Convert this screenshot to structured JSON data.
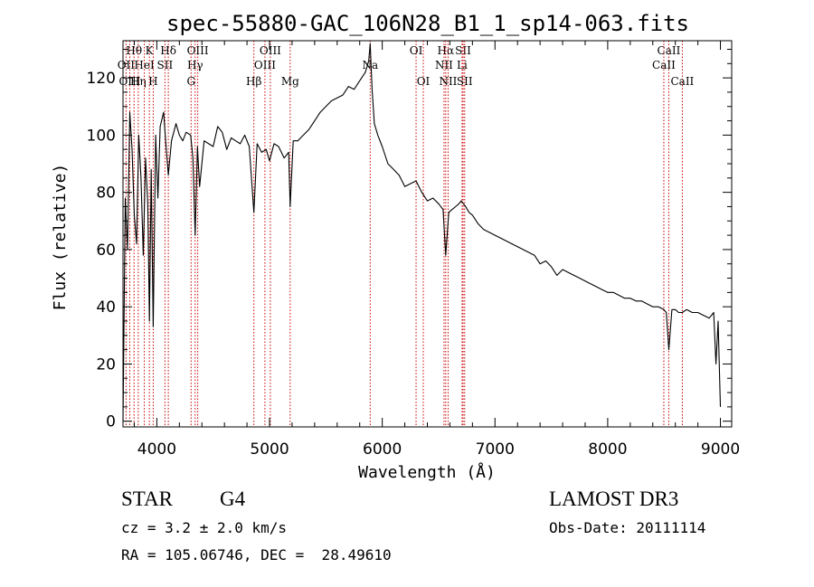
{
  "chart_data": {
    "type": "line",
    "title": "spec-55880-GAC_106N28_B1_1_sp14-063.fits",
    "xlabel": "Wavelength (Å)",
    "ylabel": "Flux (relative)",
    "xlim": [
      3700,
      9100
    ],
    "ylim": [
      -2,
      133
    ],
    "xticks": [
      4000,
      5000,
      6000,
      7000,
      8000,
      9000
    ],
    "yticks": [
      0,
      20,
      40,
      60,
      80,
      100,
      120
    ],
    "grid": false,
    "line_color": "#000000",
    "marker_color": "#cc0000",
    "series": [
      {
        "x": [
          3700,
          3720,
          3740,
          3760,
          3780,
          3800,
          3820,
          3840,
          3860,
          3880,
          3900,
          3920,
          3934,
          3950,
          3968,
          3990,
          4010,
          4030,
          4060,
          4080,
          4102,
          4130,
          4170,
          4200,
          4230,
          4260,
          4300,
          4320,
          4340,
          4360,
          4380,
          4420,
          4460,
          4500,
          4540,
          4580,
          4620,
          4660,
          4700,
          4740,
          4780,
          4820,
          4861,
          4890,
          4930,
          4970,
          5000,
          5040,
          5080,
          5130,
          5170,
          5183,
          5210,
          5250,
          5300,
          5350,
          5400,
          5450,
          5500,
          5550,
          5600,
          5650,
          5700,
          5750,
          5800,
          5850,
          5880,
          5893,
          5910,
          5930,
          5960,
          6000,
          6050,
          6100,
          6150,
          6200,
          6250,
          6300,
          6350,
          6400,
          6450,
          6500,
          6540,
          6563,
          6590,
          6620,
          6650,
          6680,
          6700,
          6720,
          6740,
          6770,
          6800,
          6850,
          6900,
          6950,
          7000,
          7050,
          7100,
          7150,
          7200,
          7250,
          7300,
          7350,
          7400,
          7450,
          7500,
          7550,
          7600,
          7650,
          7700,
          7750,
          7800,
          7850,
          7900,
          7950,
          8000,
          8050,
          8100,
          8150,
          8200,
          8250,
          8300,
          8350,
          8400,
          8450,
          8498,
          8520,
          8542,
          8570,
          8600,
          8630,
          8662,
          8700,
          8750,
          8800,
          8850,
          8900,
          8940,
          8960,
          8980,
          9000
        ],
        "y": [
          0,
          78,
          60,
          108,
          95,
          72,
          62,
          100,
          85,
          58,
          92,
          76,
          35,
          88,
          33,
          100,
          78,
          103,
          108,
          97,
          86,
          98,
          104,
          100,
          98,
          101,
          100,
          92,
          65,
          96,
          82,
          98,
          97,
          96,
          103,
          101,
          95,
          99,
          98,
          97,
          100,
          96,
          73,
          97,
          94,
          95,
          91,
          97,
          96,
          92,
          94,
          75,
          98,
          98,
          100,
          102,
          105,
          108,
          110,
          112,
          113,
          114,
          117,
          116,
          119,
          122,
          126,
          132,
          116,
          104,
          100,
          96,
          90,
          88,
          86,
          82,
          83,
          84,
          80,
          77,
          78,
          76,
          74,
          58,
          73,
          74,
          75,
          76,
          77,
          76,
          75,
          73,
          72,
          69,
          67,
          66,
          65,
          64,
          63,
          62,
          61,
          60,
          59,
          58,
          55,
          56,
          54,
          51,
          53,
          52,
          51,
          50,
          49,
          48,
          47,
          46,
          45,
          45,
          44,
          43,
          43,
          42,
          42,
          41,
          40,
          40,
          39,
          38,
          25,
          39,
          39,
          38,
          38,
          39,
          38,
          38,
          37,
          36,
          38,
          20,
          35,
          5
        ]
      }
    ],
    "lines": [
      {
        "label": "Hθ",
        "wave": 3798,
        "row": 0
      },
      {
        "label": "OII",
        "wave": 3727,
        "row": 1
      },
      {
        "label": "OIII",
        "wave": 3760,
        "row": 2
      },
      {
        "label": "Hη",
        "wave": 3835,
        "row": 2
      },
      {
        "label": "HeI",
        "wave": 3889,
        "row": 1
      },
      {
        "label": "K",
        "wave": 3934,
        "row": 0
      },
      {
        "label": "H",
        "wave": 3968,
        "row": 2
      },
      {
        "label": "Hδ",
        "wave": 4102,
        "row": 0
      },
      {
        "label": "SII",
        "wave": 4072,
        "row": 1
      },
      {
        "label": "OIII",
        "wave": 4363,
        "row": 0
      },
      {
        "label": "Hγ",
        "wave": 4340,
        "row": 1
      },
      {
        "label": "G",
        "wave": 4304,
        "row": 2
      },
      {
        "label": "Hβ",
        "wave": 4861,
        "row": 2
      },
      {
        "label": "OIII",
        "wave": 5007,
        "row": 0
      },
      {
        "label": "OIII",
        "wave": 4959,
        "row": 1
      },
      {
        "label": "Mg",
        "wave": 5183,
        "row": 2
      },
      {
        "label": "Na",
        "wave": 5893,
        "row": 1
      },
      {
        "label": "OI",
        "wave": 6300,
        "row": 0
      },
      {
        "label": "OI",
        "wave": 6364,
        "row": 2
      },
      {
        "label": "Hα",
        "wave": 6563,
        "row": 0
      },
      {
        "label": "NII",
        "wave": 6548,
        "row": 1
      },
      {
        "label": "NII",
        "wave": 6584,
        "row": 2
      },
      {
        "label": "SII",
        "wave": 6717,
        "row": 0
      },
      {
        "label": "Li",
        "wave": 6708,
        "row": 1
      },
      {
        "label": "SII",
        "wave": 6731,
        "row": 2
      },
      {
        "label": "CaII",
        "wave": 8542,
        "row": 0
      },
      {
        "label": "CaII",
        "wave": 8498,
        "row": 1
      },
      {
        "label": "CaII",
        "wave": 8662,
        "row": 2
      }
    ]
  },
  "info": {
    "object_class": "STAR",
    "subclass": "G4",
    "survey": "LAMOST DR3",
    "redshift": "cz = 3.2 ± 2.0 km/s",
    "obs_date": "Obs-Date: 20111114",
    "coords": "RA = 105.06746, DEC =  28.49610"
  }
}
